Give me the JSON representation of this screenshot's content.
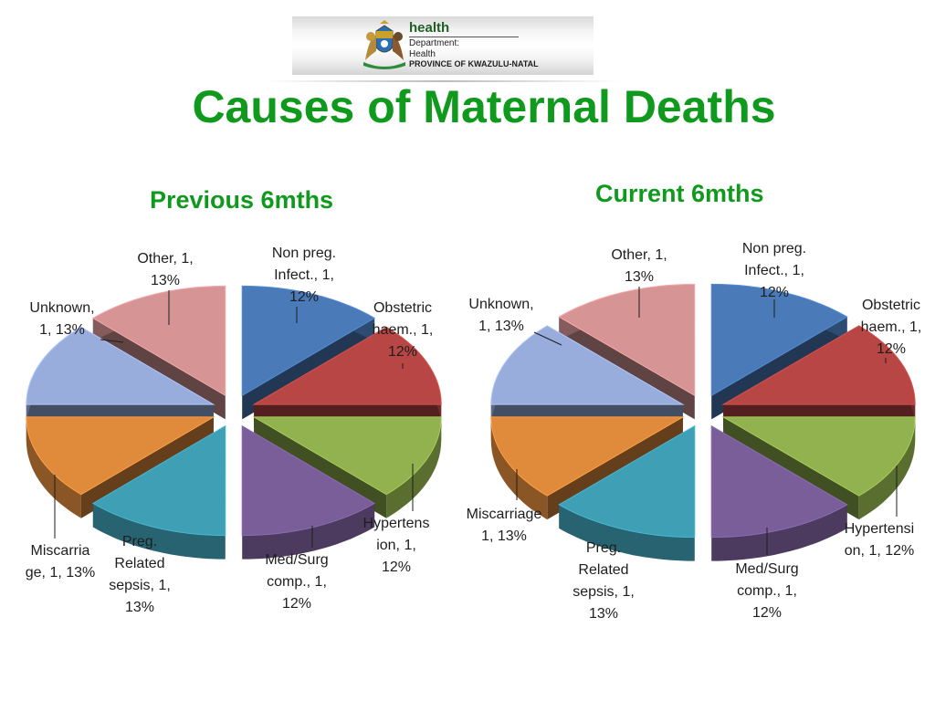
{
  "header": {
    "logo_title": "health",
    "logo_line1": "Department:",
    "logo_line2": "Health",
    "logo_line3": "PROVINCE OF KWAZULU-NATAL",
    "crest_icon": "coat-of-arms-icon"
  },
  "page_title": "Causes of Maternal Deaths",
  "colors": {
    "non_preg_infect": "#4a7ab8",
    "obstetric_haem": "#b84644",
    "hypertension": "#91b24e",
    "med_surg": "#7a5e9a",
    "preg_sepsis": "#3f9fb5",
    "miscarriage": "#e08a3c",
    "unknown": "#98addb",
    "other": "#d69495"
  },
  "chart_data": [
    {
      "type": "pie",
      "title": "Previous 6mths",
      "categories": [
        "Non preg. Infect.",
        "Obstetric haem.",
        "Hypertension",
        "Med/Surg comp.",
        "Preg. Related sepsis",
        "Miscarriage",
        "Unknown",
        "Other"
      ],
      "values": [
        1,
        1,
        1,
        1,
        1,
        1,
        1,
        1
      ],
      "percents": [
        12,
        12,
        12,
        12,
        13,
        13,
        13,
        13
      ],
      "data_labels": [
        [
          "Non preg.",
          "Infect., 1,",
          "12%"
        ],
        [
          "Obstetric",
          "haem., 1,",
          "12%"
        ],
        [
          "Hypertens",
          "ion, 1,",
          "12%"
        ],
        [
          "Med/Surg",
          "comp., 1,",
          "12%"
        ],
        [
          "Preg.",
          "Related",
          "sepsis, 1,",
          "13%"
        ],
        [
          "Miscarria",
          "ge, 1, 13%"
        ],
        [
          "Unknown,",
          "1, 13%"
        ],
        [
          "Other, 1,",
          "13%"
        ]
      ]
    },
    {
      "type": "pie",
      "title": "Current 6mths",
      "categories": [
        "Non preg. Infect.",
        "Obstetric haem.",
        "Hypertension",
        "Med/Surg comp.",
        "Preg. Related sepsis",
        "Miscarriage",
        "Unknown",
        "Other"
      ],
      "values": [
        1,
        1,
        1,
        1,
        1,
        1,
        1,
        1
      ],
      "percents": [
        12,
        12,
        12,
        12,
        13,
        13,
        13,
        13
      ],
      "data_labels": [
        [
          "Non preg.",
          "Infect., 1,",
          "12%"
        ],
        [
          "Obstetric",
          "haem., 1,",
          "12%"
        ],
        [
          "Hypertensi",
          "on, 1, 12%"
        ],
        [
          "Med/Surg",
          "comp., 1,",
          "12%"
        ],
        [
          "Preg.",
          "Related",
          "sepsis, 1,",
          "13%"
        ],
        [
          "Miscarriage",
          "1, 13%"
        ],
        [
          "Unknown,",
          "1, 13%"
        ],
        [
          "Other, 1,",
          "13%"
        ]
      ]
    }
  ]
}
